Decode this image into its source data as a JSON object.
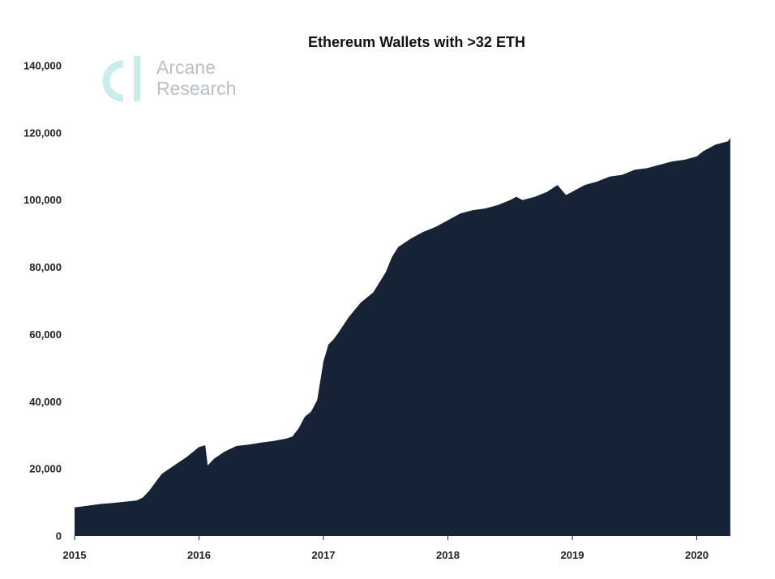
{
  "logo": {
    "line1": "Arcane",
    "line2": "Research",
    "color": "#c9ede9"
  },
  "chart_data": {
    "type": "area",
    "title": "Ethereum Wallets with >32 ETH",
    "xlabel": "",
    "ylabel": "",
    "grid": false,
    "legend": "none",
    "fill_color": "#162236",
    "xlim": [
      2015.0,
      2020.3
    ],
    "ylim": [
      0,
      140000
    ],
    "x_ticks": [
      2015,
      2016,
      2017,
      2018,
      2019,
      2020
    ],
    "x_tick_labels": [
      "2015",
      "2016",
      "2017",
      "2018",
      "2019",
      "2020"
    ],
    "y_ticks": [
      0,
      20000,
      40000,
      60000,
      80000,
      100000,
      120000,
      140000
    ],
    "y_tick_labels": [
      "0",
      "20,000",
      "40,000",
      "60,000",
      "80,000",
      "100,000",
      "120,000",
      "140,000"
    ],
    "series": [
      {
        "x": [
          2015.0,
          2015.1,
          2015.2,
          2015.3,
          2015.4,
          2015.5,
          2015.55,
          2015.6,
          2015.65,
          2015.7,
          2015.8,
          2015.9,
          2016.0,
          2016.05,
          2016.07,
          2016.12,
          2016.2,
          2016.3,
          2016.4,
          2016.5,
          2016.6,
          2016.7,
          2016.75,
          2016.8,
          2016.85,
          2016.9,
          2016.95,
          2017.0,
          2017.04,
          2017.08,
          2017.12,
          2017.2,
          2017.3,
          2017.4,
          2017.5,
          2017.55,
          2017.6,
          2017.7,
          2017.8,
          2017.9,
          2018.0,
          2018.1,
          2018.2,
          2018.3,
          2018.4,
          2018.5,
          2018.55,
          2018.6,
          2018.7,
          2018.8,
          2018.88,
          2018.95,
          2019.0,
          2019.1,
          2019.2,
          2019.3,
          2019.4,
          2019.5,
          2019.6,
          2019.7,
          2019.8,
          2019.9,
          2020.0,
          2020.05,
          2020.1,
          2020.15,
          2020.2,
          2020.25,
          2020.27
        ],
        "y": [
          8500,
          9000,
          9500,
          9800,
          10200,
          10600,
          11500,
          13500,
          16000,
          18500,
          21000,
          23500,
          26500,
          27000,
          21000,
          23000,
          25000,
          26800,
          27200,
          27800,
          28300,
          29000,
          29600,
          32000,
          35500,
          37000,
          40500,
          52000,
          57000,
          58500,
          60500,
          65000,
          69500,
          72500,
          78500,
          83000,
          86000,
          88500,
          90500,
          92000,
          94000,
          96000,
          97000,
          97500,
          98500,
          100000,
          101000,
          100000,
          101000,
          102500,
          104500,
          101500,
          102500,
          104500,
          105500,
          107000,
          107500,
          109000,
          109500,
          110500,
          111500,
          112000,
          113000,
          114500,
          115500,
          116500,
          117000,
          117500,
          118500
        ]
      }
    ]
  }
}
